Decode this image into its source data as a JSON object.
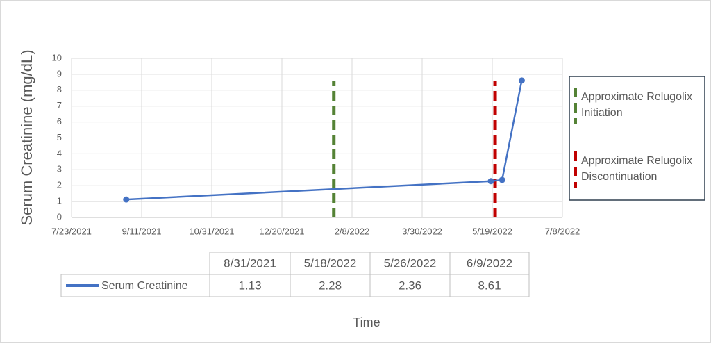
{
  "chart_data": {
    "type": "line",
    "y_label": "Serum Creatinine (mg/dL)",
    "x_label": "Time",
    "x": [
      "8/31/2021",
      "5/18/2022",
      "5/26/2022",
      "6/9/2022"
    ],
    "series": [
      {
        "name": "Serum Creatinine",
        "color": "#4472c4",
        "values": [
          1.13,
          2.28,
          2.36,
          8.61
        ]
      }
    ],
    "xlim": [
      "7/23/2021",
      "7/8/2022"
    ],
    "xticks": [
      "7/23/2021",
      "9/11/2021",
      "10/31/2021",
      "12/20/2021",
      "2/8/2022",
      "3/30/2022",
      "5/19/2022",
      "7/8/2022"
    ],
    "ylim": [
      0,
      10
    ],
    "yticks": [
      0,
      1,
      2,
      3,
      4,
      5,
      6,
      7,
      8,
      9,
      10
    ],
    "grid": true,
    "events": [
      {
        "x": "1/26/2022",
        "ymax": 8.6,
        "color": "#548235",
        "label_lines": [
          "Approximate Relugolix",
          "Initiation"
        ]
      },
      {
        "x": "5/21/2022",
        "ymax": 8.6,
        "color": "#c00000",
        "label_lines": [
          "Approximate Relugolix",
          "Discontinuation"
        ]
      }
    ]
  }
}
